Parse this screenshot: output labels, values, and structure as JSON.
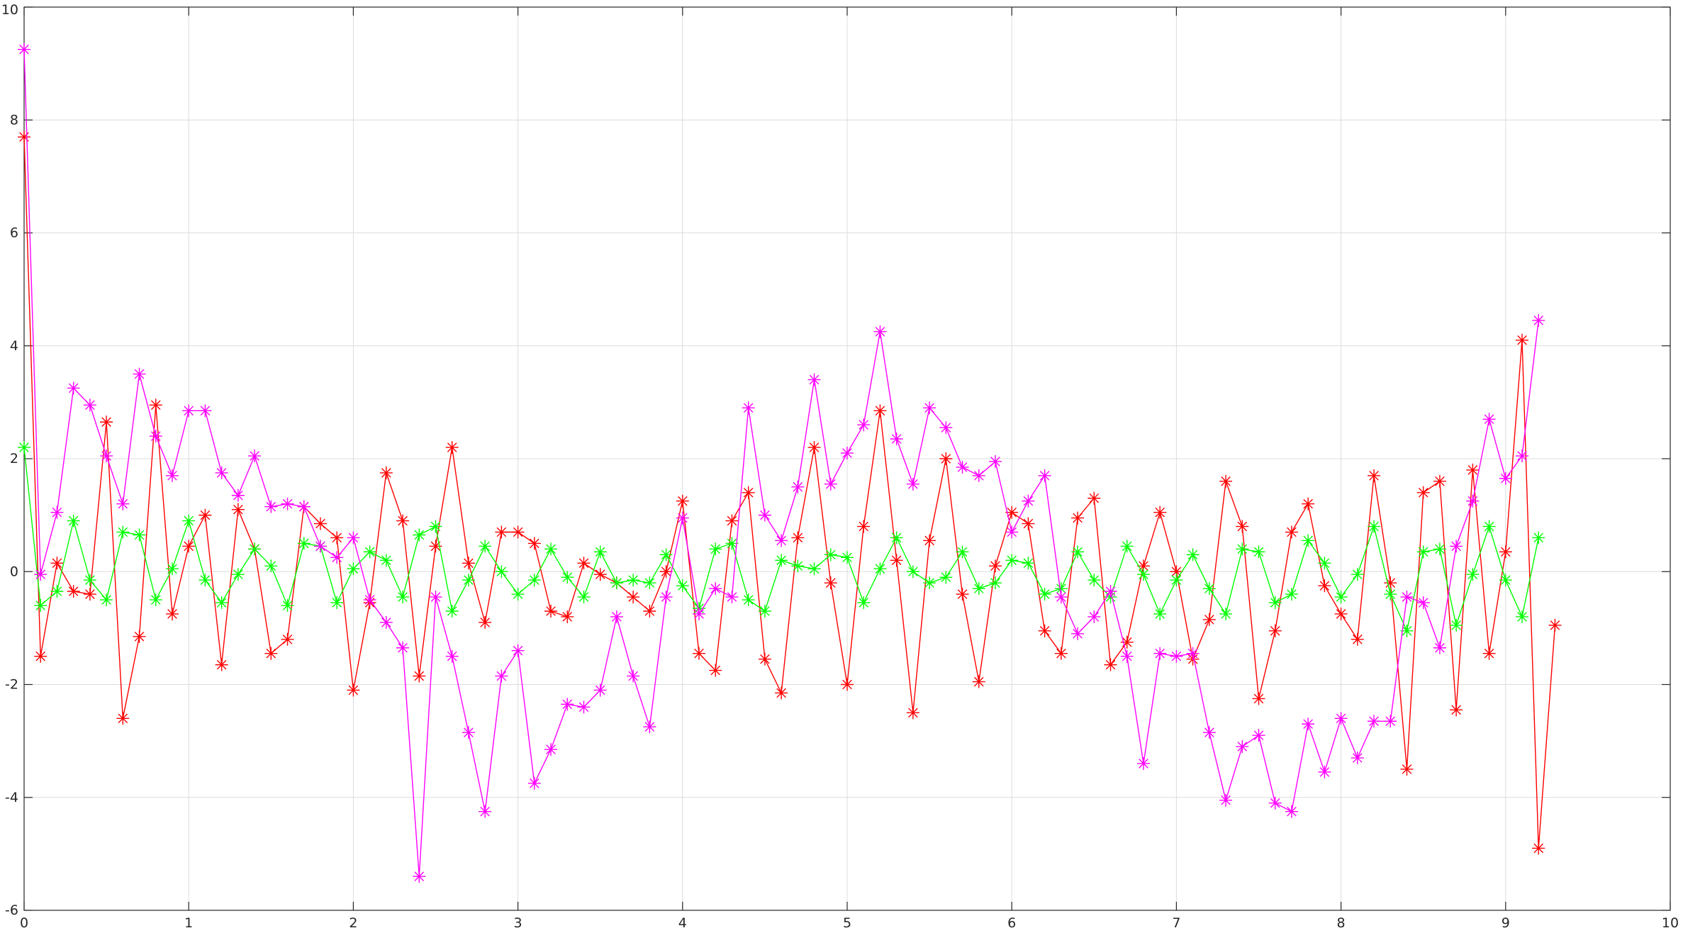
{
  "chart_data": {
    "type": "line",
    "title": "",
    "xlabel": "",
    "ylabel": "",
    "xlim": [
      0,
      10
    ],
    "ylim": [
      -6,
      10
    ],
    "grid": true,
    "marker": "asterisk",
    "x_ticks": [
      0,
      1,
      2,
      3,
      4,
      5,
      6,
      7,
      8,
      9,
      10
    ],
    "y_ticks": [
      -6,
      -4,
      -2,
      0,
      2,
      4,
      6,
      8,
      10
    ],
    "x_tick_labels": [
      "0",
      "1",
      "2",
      "3",
      "4",
      "5",
      "6",
      "7",
      "8",
      "9",
      "10"
    ],
    "y_tick_labels": [
      "-6",
      "-4",
      "-2",
      "0",
      "2",
      "4",
      "6",
      "8",
      "10"
    ],
    "series": [
      {
        "name": "red",
        "color": "#ff0000",
        "x": [
          0,
          0.1,
          0.2,
          0.3,
          0.4,
          0.5,
          0.6,
          0.7,
          0.8,
          0.9,
          1,
          1.1,
          1.2,
          1.3,
          1.4,
          1.5,
          1.6,
          1.7,
          1.8,
          1.9,
          2,
          2.1,
          2.2,
          2.3,
          2.4,
          2.5,
          2.6,
          2.7,
          2.8,
          2.9,
          3,
          3.1,
          3.2,
          3.3,
          3.4,
          3.5,
          3.6,
          3.7,
          3.8,
          3.9,
          4,
          4.1,
          4.2,
          4.3,
          4.4,
          4.5,
          4.6,
          4.7,
          4.8,
          4.9,
          5,
          5.1,
          5.2,
          5.3,
          5.4,
          5.5,
          5.6,
          5.7,
          5.8,
          5.9,
          6,
          6.1,
          6.2,
          6.3,
          6.4,
          6.5,
          6.6,
          6.7,
          6.8,
          6.9,
          7,
          7.1,
          7.2,
          7.3,
          7.4,
          7.5,
          7.6,
          7.7,
          7.8,
          7.9,
          8,
          8.1,
          8.2,
          8.3,
          8.4,
          8.5,
          8.6,
          8.7,
          8.8,
          8.9,
          9,
          9.1,
          9.2,
          9.3
        ],
        "values": [
          7.7,
          -1.5,
          0.15,
          -0.35,
          -0.4,
          2.65,
          -2.6,
          -1.15,
          2.95,
          -0.75,
          0.45,
          1.0,
          -1.65,
          1.1,
          0.4,
          -1.45,
          -1.2,
          1.15,
          0.85,
          0.6,
          -2.1,
          -0.55,
          1.75,
          0.9,
          -1.85,
          0.45,
          2.2,
          0.15,
          -0.9,
          0.7,
          0.7,
          0.5,
          -0.7,
          -0.8,
          0.15,
          -0.05,
          -0.2,
          -0.45,
          -0.7,
          0.0,
          1.25,
          -1.45,
          -1.75,
          0.9,
          1.4,
          -1.55,
          -2.15,
          0.6,
          2.2,
          -0.2,
          -2.0,
          0.8,
          2.85,
          0.2,
          -2.5,
          0.55,
          2.0,
          -0.4,
          -1.95,
          0.1,
          1.05,
          0.85,
          -1.05,
          -1.45,
          0.95,
          1.3,
          -1.65,
          -1.25,
          0.1,
          1.05,
          0.0,
          -1.55,
          -0.85,
          1.6,
          0.8,
          -2.25,
          -1.05,
          0.7,
          1.2,
          -0.25,
          -0.75,
          -1.2,
          1.7,
          -0.2,
          -3.5,
          1.4,
          1.6,
          -2.45,
          1.8,
          -1.45,
          0.35,
          4.1,
          -4.9,
          -0.95
        ]
      },
      {
        "name": "green",
        "color": "#00ff00",
        "x": [
          0,
          0.1,
          0.2,
          0.3,
          0.4,
          0.5,
          0.6,
          0.7,
          0.8,
          0.9,
          1,
          1.1,
          1.2,
          1.3,
          1.4,
          1.5,
          1.6,
          1.7,
          1.8,
          1.9,
          2,
          2.1,
          2.2,
          2.3,
          2.4,
          2.5,
          2.6,
          2.7,
          2.8,
          2.9,
          3,
          3.1,
          3.2,
          3.3,
          3.4,
          3.5,
          3.6,
          3.7,
          3.8,
          3.9,
          4,
          4.1,
          4.2,
          4.3,
          4.4,
          4.5,
          4.6,
          4.7,
          4.8,
          4.9,
          5,
          5.1,
          5.2,
          5.3,
          5.4,
          5.5,
          5.6,
          5.7,
          5.8,
          5.9,
          6,
          6.1,
          6.2,
          6.3,
          6.4,
          6.5,
          6.6,
          6.7,
          6.8,
          6.9,
          7,
          7.1,
          7.2,
          7.3,
          7.4,
          7.5,
          7.6,
          7.7,
          7.8,
          7.9,
          8,
          8.1,
          8.2,
          8.3,
          8.4,
          8.5,
          8.6,
          8.7,
          8.8,
          8.9,
          9,
          9.1,
          9.2
        ],
        "values": [
          2.2,
          -0.6,
          -0.35,
          0.9,
          -0.15,
          -0.5,
          0.7,
          0.65,
          -0.5,
          0.05,
          0.9,
          -0.15,
          -0.55,
          -0.05,
          0.4,
          0.1,
          -0.6,
          0.5,
          0.45,
          -0.55,
          0.05,
          0.35,
          0.2,
          -0.45,
          0.65,
          0.8,
          -0.7,
          -0.15,
          0.45,
          0.0,
          -0.4,
          -0.15,
          0.4,
          -0.1,
          -0.45,
          0.35,
          -0.2,
          -0.15,
          -0.2,
          0.3,
          -0.25,
          -0.65,
          0.4,
          0.5,
          -0.5,
          -0.7,
          0.2,
          0.1,
          0.05,
          0.3,
          0.25,
          -0.55,
          0.05,
          0.6,
          0.0,
          -0.2,
          -0.1,
          0.35,
          -0.3,
          -0.2,
          0.2,
          0.15,
          -0.4,
          -0.3,
          0.35,
          -0.15,
          -0.45,
          0.45,
          -0.05,
          -0.75,
          -0.15,
          0.3,
          -0.3,
          -0.75,
          0.4,
          0.35,
          -0.55,
          -0.4,
          0.55,
          0.15,
          -0.45,
          -0.05,
          0.8,
          -0.4,
          -1.05,
          0.35,
          0.4,
          -0.95,
          -0.05,
          0.8,
          -0.15,
          -0.8,
          0.6
        ]
      },
      {
        "name": "magenta",
        "color": "#ff00ff",
        "x": [
          0,
          0.1,
          0.2,
          0.3,
          0.4,
          0.5,
          0.6,
          0.7,
          0.8,
          0.9,
          1,
          1.1,
          1.2,
          1.3,
          1.4,
          1.5,
          1.6,
          1.7,
          1.8,
          1.9,
          2,
          2.1,
          2.2,
          2.3,
          2.4,
          2.5,
          2.6,
          2.7,
          2.8,
          2.9,
          3,
          3.1,
          3.2,
          3.3,
          3.4,
          3.5,
          3.6,
          3.7,
          3.8,
          3.9,
          4,
          4.1,
          4.2,
          4.3,
          4.4,
          4.5,
          4.6,
          4.7,
          4.8,
          4.9,
          5,
          5.1,
          5.2,
          5.3,
          5.4,
          5.5,
          5.6,
          5.7,
          5.8,
          5.9,
          6,
          6.1,
          6.2,
          6.3,
          6.4,
          6.5,
          6.6,
          6.7,
          6.8,
          6.9,
          7,
          7.1,
          7.2,
          7.3,
          7.4,
          7.5,
          7.6,
          7.7,
          7.8,
          7.9,
          8,
          8.1,
          8.2,
          8.3,
          8.4,
          8.5,
          8.6,
          8.7,
          8.8,
          8.9,
          9,
          9.1,
          9.2
        ],
        "values": [
          9.25,
          -0.05,
          1.05,
          3.25,
          2.95,
          2.05,
          1.2,
          3.5,
          2.4,
          1.7,
          2.85,
          2.85,
          1.75,
          1.35,
          2.05,
          1.15,
          1.2,
          1.15,
          0.45,
          0.25,
          0.6,
          -0.5,
          -0.9,
          -1.35,
          -5.4,
          -0.45,
          -1.5,
          -2.85,
          -4.25,
          -1.85,
          -1.4,
          -3.75,
          -3.15,
          -2.35,
          -2.4,
          -2.1,
          -0.8,
          -1.85,
          -2.75,
          -0.45,
          0.95,
          -0.75,
          -0.3,
          -0.45,
          2.9,
          1.0,
          0.55,
          1.5,
          3.4,
          1.55,
          2.1,
          2.6,
          4.25,
          2.35,
          1.55,
          2.9,
          2.55,
          1.85,
          1.7,
          1.95,
          0.7,
          1.25,
          1.7,
          -0.45,
          -1.1,
          -0.8,
          -0.35,
          -1.5,
          -3.4,
          -1.45,
          -1.5,
          -1.45,
          -2.85,
          -4.05,
          -3.1,
          -2.9,
          -4.1,
          -4.25,
          -2.7,
          -3.55,
          -2.6,
          -3.3,
          -2.65,
          -2.65,
          -0.45,
          -0.55,
          -1.35,
          0.45,
          1.25,
          2.7,
          1.65,
          2.05,
          4.45
        ]
      }
    ]
  }
}
